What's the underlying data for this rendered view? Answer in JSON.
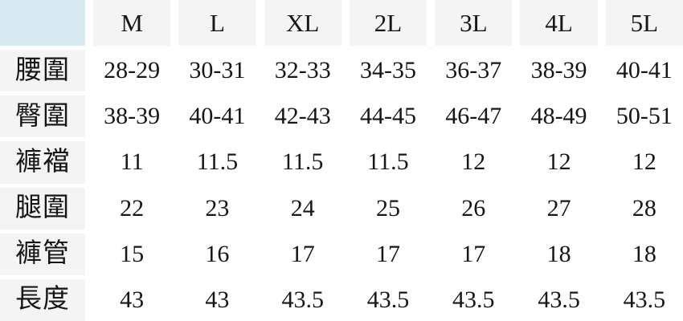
{
  "table": {
    "corner_label": "",
    "columns": [
      "M",
      "L",
      "XL",
      "2L",
      "3L",
      "4L",
      "5L"
    ],
    "rows": [
      {
        "label": "腰圍",
        "values": [
          "28-29",
          "30-31",
          "32-33",
          "34-35",
          "36-37",
          "38-39",
          "40-41"
        ]
      },
      {
        "label": "臀圍",
        "values": [
          "38-39",
          "40-41",
          "42-43",
          "44-45",
          "46-47",
          "48-49",
          "50-51"
        ]
      },
      {
        "label": "褲襠",
        "values": [
          "11",
          "11.5",
          "11.5",
          "11.5",
          "12",
          "12",
          "12"
        ]
      },
      {
        "label": "腿圍",
        "values": [
          "22",
          "23",
          "24",
          "25",
          "26",
          "27",
          "28"
        ]
      },
      {
        "label": "褲管",
        "values": [
          "15",
          "16",
          "17",
          "17",
          "17",
          "18",
          "18"
        ]
      },
      {
        "label": "長度",
        "values": [
          "43",
          "43",
          "43.5",
          "43.5",
          "43.5",
          "43.5",
          "43.5"
        ]
      }
    ]
  },
  "colors": {
    "corner_bg": "#daeaf2",
    "header_bg": "#f4f4f4",
    "label_bg": "#f4f4f4",
    "value_bg": "#ffffff",
    "text": "#161616"
  },
  "chart_data": {
    "type": "table",
    "title": "",
    "column_headers": [
      "",
      "M",
      "L",
      "XL",
      "2L",
      "3L",
      "4L",
      "5L"
    ],
    "row_headers": [
      "腰圍",
      "臀圍",
      "褲襠",
      "腿圍",
      "褲管",
      "長度"
    ],
    "cells": [
      [
        "28-29",
        "30-31",
        "32-33",
        "34-35",
        "36-37",
        "38-39",
        "40-41"
      ],
      [
        "38-39",
        "40-41",
        "42-43",
        "44-45",
        "46-47",
        "48-49",
        "50-51"
      ],
      [
        "11",
        "11.5",
        "11.5",
        "11.5",
        "12",
        "12",
        "12"
      ],
      [
        "22",
        "23",
        "24",
        "25",
        "26",
        "27",
        "28"
      ],
      [
        "15",
        "16",
        "17",
        "17",
        "17",
        "18",
        "18"
      ],
      [
        "43",
        "43",
        "43.5",
        "43.5",
        "43.5",
        "43.5",
        "43.5"
      ]
    ]
  }
}
